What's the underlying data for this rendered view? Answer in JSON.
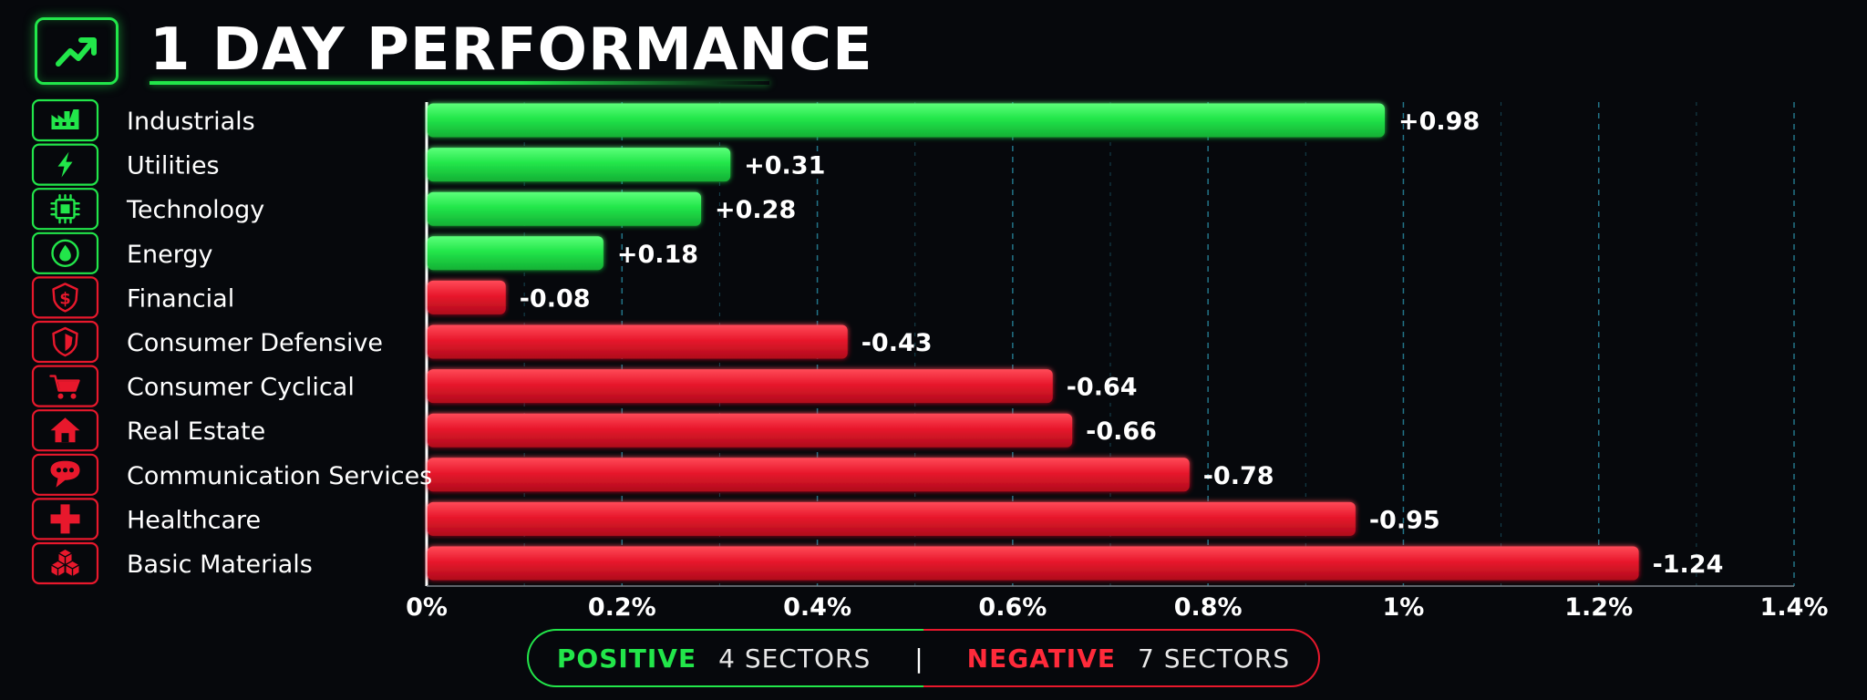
{
  "title": "1 DAY PERFORMANCE",
  "header_icon": "trending-up-icon",
  "colors": {
    "positive": "#22e64a",
    "negative": "#e8182c",
    "background": "#06080c",
    "grid": "#2a8fa8"
  },
  "summary": {
    "positive_label": "POSITIVE",
    "positive_count": "4 SECTORS",
    "divider": "|",
    "negative_label": "NEGATIVE",
    "negative_count": "7 SECTORS"
  },
  "chart_data": {
    "type": "bar",
    "orientation": "horizontal",
    "title": "1 DAY PERFORMANCE",
    "xlim": [
      0,
      1.4
    ],
    "xticks": [
      "0%",
      "0.2%",
      "0.4%",
      "0.6%",
      "0.8%",
      "1%",
      "1.2%",
      "1.4%"
    ],
    "grid": "vertical dashed",
    "categories": [
      "Industrials",
      "Utilities",
      "Technology",
      "Energy",
      "Financial",
      "Consumer Defensive",
      "Consumer Cyclical",
      "Real Estate",
      "Communication Services",
      "Healthcare",
      "Basic Materials"
    ],
    "values": [
      0.98,
      0.31,
      0.28,
      0.18,
      -0.08,
      -0.43,
      -0.64,
      -0.66,
      -0.78,
      -0.95,
      -1.24
    ],
    "value_labels": [
      "+0.98",
      "+0.31",
      "+0.28",
      "+0.18",
      "-0.08",
      "-0.43",
      "-0.64",
      "-0.66",
      "-0.78",
      "-0.95",
      "-1.24"
    ],
    "icons": [
      "factory-icon",
      "lightning-icon",
      "chip-icon",
      "energy-drop-icon",
      "dollar-shield-icon",
      "defense-shield-icon",
      "shopping-cart-icon",
      "house-icon",
      "chat-bubble-icon",
      "medical-cross-icon",
      "cubes-icon"
    ]
  }
}
